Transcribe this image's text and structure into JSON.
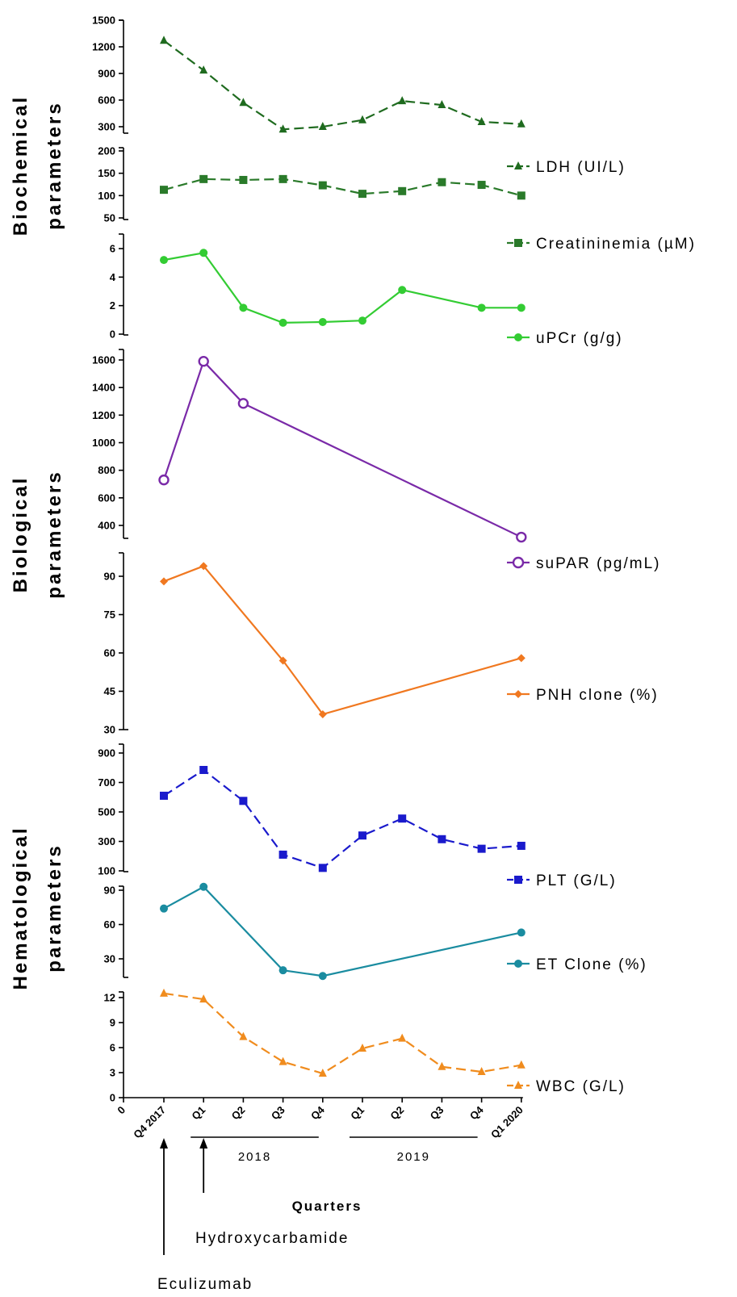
{
  "chart_data": {
    "type": "line",
    "x_axis": {
      "title": "Quarters",
      "tick_labels": [
        "0",
        "Q4 2017",
        "Q1",
        "Q2",
        "Q3",
        "Q4",
        "Q1",
        "Q2",
        "Q3",
        "Q4",
        "Q1 2020"
      ],
      "year_groups": [
        {
          "label": "2018",
          "from": 1,
          "to": 4
        },
        {
          "label": "2019",
          "from": 5,
          "to": 8
        }
      ]
    },
    "groups": [
      {
        "label_line1": "Biochemical",
        "label_line2": "parameters",
        "panels": [
          0,
          1,
          2
        ]
      },
      {
        "label_line1": "Biological",
        "label_line2": "parameters",
        "panels": [
          3,
          4
        ]
      },
      {
        "label_line1": "Hematological",
        "label_line2": "parameters",
        "panels": [
          5,
          6,
          7
        ]
      }
    ],
    "panels": [
      {
        "name": "LDH (UI/L)",
        "color": "#1f6b1f",
        "marker": "triangle",
        "dash": true,
        "ylim": [
          250,
          1500
        ],
        "ticks": [
          "1500",
          "1200",
          "900",
          "600",
          "300"
        ],
        "tick_values": [
          1500,
          1200,
          900,
          600,
          300
        ],
        "x": [
          0,
          1,
          2,
          3,
          4,
          5,
          6,
          7,
          8,
          9
        ],
        "values": [
          1270,
          935,
          570,
          270,
          300,
          375,
          590,
          545,
          355,
          330
        ]
      },
      {
        "name": "Creatininemia (µM)",
        "color": "#2a7a2a",
        "marker": "square",
        "dash": true,
        "ylim": [
          50,
          210
        ],
        "ticks": [
          "200",
          "150",
          "100",
          "50"
        ],
        "tick_values": [
          200,
          150,
          100,
          50
        ],
        "x": [
          0,
          1,
          2,
          3,
          4,
          5,
          6,
          7,
          8,
          9
        ],
        "values": [
          113,
          137,
          135,
          137,
          123,
          104,
          110,
          130,
          124,
          100
        ]
      },
      {
        "name": "uPCr (g/g)",
        "color": "#33cc33",
        "marker": "circle",
        "dash": false,
        "ylim": [
          0,
          7
        ],
        "ticks": [
          "6",
          "4",
          "2",
          "0"
        ],
        "tick_values": [
          6,
          4,
          2,
          0
        ],
        "x": [
          0,
          1,
          2,
          3,
          4,
          5,
          6,
          8,
          9
        ],
        "values": [
          5.2,
          5.7,
          1.85,
          0.8,
          0.85,
          0.95,
          3.1,
          1.85,
          1.85
        ]
      },
      {
        "name": "suPAR (pg/mL)",
        "color": "#7a2aa8",
        "marker": "open-circle",
        "dash": false,
        "ylim": [
          300,
          1600
        ],
        "ticks": [
          "1600",
          "1400",
          "1200",
          "1000",
          "800",
          "600",
          "400"
        ],
        "tick_values": [
          1600,
          1400,
          1200,
          1000,
          800,
          600,
          400
        ],
        "x": [
          0,
          1,
          2,
          9
        ],
        "values": [
          730,
          1590,
          1285,
          315
        ]
      },
      {
        "name": "PNH clone (%)",
        "color": "#f07820",
        "marker": "diamond",
        "dash": false,
        "ylim": [
          30,
          100
        ],
        "ticks": [
          "90",
          "75",
          "60",
          "45",
          "30"
        ],
        "tick_values": [
          90,
          75,
          60,
          45,
          30
        ],
        "x": [
          0,
          1,
          3,
          4,
          9
        ],
        "values": [
          88,
          94,
          57,
          36,
          58
        ]
      },
      {
        "name": "PLT (G/L)",
        "color": "#1a1acc",
        "marker": "square",
        "dash": true,
        "ylim": [
          100,
          900
        ],
        "ticks": [
          "900",
          "700",
          "500",
          "300",
          "100"
        ],
        "tick_values": [
          900,
          700,
          500,
          300,
          100
        ],
        "x": [
          0,
          1,
          2,
          3,
          4,
          5,
          6,
          7,
          8,
          9
        ],
        "values": [
          610,
          785,
          575,
          210,
          120,
          340,
          455,
          315,
          250,
          270
        ]
      },
      {
        "name": "ET Clone (%)",
        "color": "#1a8ca0",
        "marker": "circle",
        "dash": false,
        "ylim": [
          10,
          95
        ],
        "ticks": [
          "90",
          "60",
          "30"
        ],
        "tick_values": [
          90,
          60,
          30
        ],
        "x": [
          0,
          1,
          3,
          4,
          9
        ],
        "values": [
          74,
          93,
          20,
          15,
          53
        ]
      },
      {
        "name": "WBC (G/L)",
        "color": "#f08c1e",
        "marker": "triangle",
        "dash": true,
        "ylim": [
          0,
          13
        ],
        "ticks": [
          "12",
          "9",
          "6",
          "3",
          "0"
        ],
        "tick_values": [
          12,
          9,
          6,
          3,
          0
        ],
        "x": [
          0,
          1,
          2,
          3,
          4,
          5,
          6,
          7,
          8,
          9
        ],
        "values": [
          12.5,
          11.8,
          7.3,
          4.3,
          2.9,
          5.9,
          7.1,
          3.7,
          3.1,
          3.9
        ]
      }
    ],
    "annotations": [
      {
        "text": "Eculizumab",
        "x": 0
      },
      {
        "text": "Hydroxycarbamide",
        "x": 1
      }
    ]
  }
}
